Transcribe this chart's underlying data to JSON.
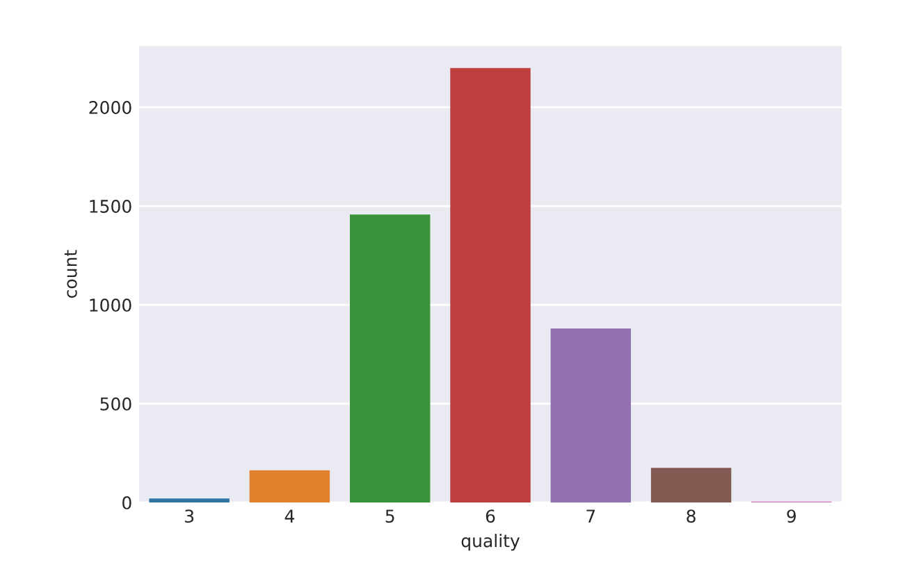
{
  "chart_data": {
    "type": "bar",
    "xlabel": "quality",
    "ylabel": "count",
    "categories": [
      "3",
      "4",
      "5",
      "6",
      "7",
      "8",
      "9"
    ],
    "values": [
      20,
      163,
      1457,
      2198,
      880,
      175,
      5
    ],
    "colors": [
      "#3274a1",
      "#e1812c",
      "#3a923a",
      "#c03d3e",
      "#9372b2",
      "#845b53",
      "#d684bd"
    ],
    "ylim": [
      0,
      2310
    ],
    "yticks": [
      0,
      500,
      1000,
      1500,
      2000
    ],
    "grid": "y"
  }
}
